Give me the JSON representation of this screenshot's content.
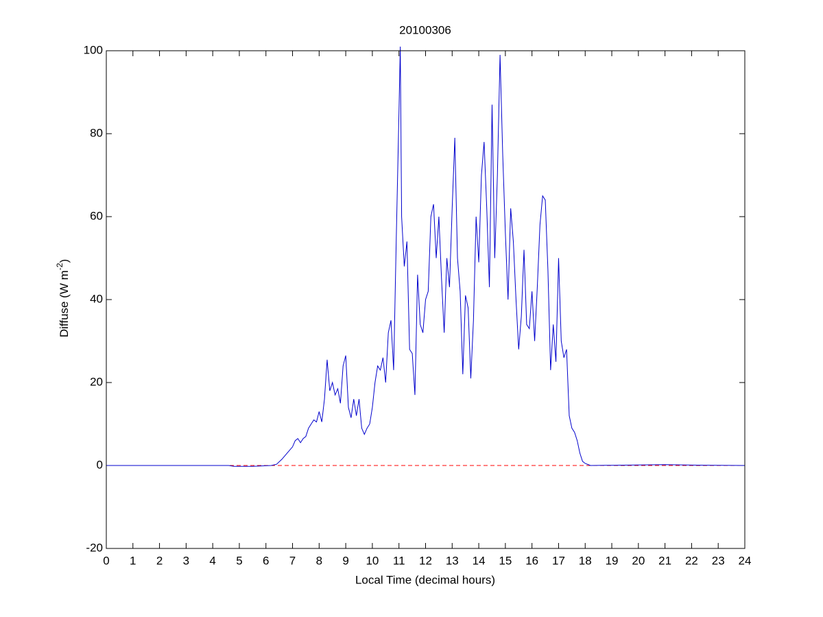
{
  "chart_data": {
    "type": "line",
    "title": "20100306",
    "xlabel": "Local Time (decimal hours)",
    "ylabel": [
      "Diffuse (W m",
      "-2",
      ")"
    ],
    "xlim": [
      0,
      24
    ],
    "xticks": [
      0,
      1,
      2,
      3,
      4,
      5,
      6,
      7,
      8,
      9,
      10,
      11,
      12,
      13,
      14,
      15,
      16,
      17,
      18,
      19,
      20,
      21,
      22,
      23,
      24
    ],
    "ylim": [
      -20,
      100
    ],
    "yticks": [
      -20,
      0,
      20,
      40,
      60,
      80,
      100
    ],
    "reference_line": {
      "value": 0,
      "color": "#ff0000",
      "style": "dashed"
    },
    "series": [
      {
        "color": "#0000cc",
        "x": [
          0,
          4.6,
          4.8,
          5.5,
          6.2,
          6.4,
          6.6,
          6.8,
          7.0,
          7.1,
          7.2,
          7.3,
          7.4,
          7.5,
          7.6,
          7.7,
          7.8,
          7.9,
          8.0,
          8.1,
          8.2,
          8.3,
          8.4,
          8.5,
          8.6,
          8.7,
          8.8,
          8.9,
          9.0,
          9.1,
          9.2,
          9.3,
          9.4,
          9.5,
          9.6,
          9.7,
          9.8,
          9.9,
          10.0,
          10.1,
          10.2,
          10.3,
          10.4,
          10.5,
          10.6,
          10.7,
          10.8,
          10.9,
          11.0,
          11.05,
          11.1,
          11.2,
          11.3,
          11.4,
          11.5,
          11.6,
          11.7,
          11.8,
          11.9,
          12.0,
          12.1,
          12.2,
          12.3,
          12.4,
          12.5,
          12.6,
          12.7,
          12.8,
          12.9,
          13.0,
          13.1,
          13.2,
          13.3,
          13.4,
          13.5,
          13.6,
          13.7,
          13.8,
          13.9,
          14.0,
          14.1,
          14.2,
          14.3,
          14.4,
          14.5,
          14.6,
          14.7,
          14.8,
          14.9,
          15.0,
          15.1,
          15.2,
          15.3,
          15.4,
          15.5,
          15.6,
          15.7,
          15.8,
          15.9,
          16.0,
          16.1,
          16.2,
          16.3,
          16.4,
          16.5,
          16.6,
          16.7,
          16.8,
          16.9,
          17.0,
          17.1,
          17.2,
          17.3,
          17.4,
          17.5,
          17.6,
          17.7,
          17.8,
          17.9,
          18.0,
          18.2,
          21.0,
          22.0,
          24.0
        ],
        "values": [
          0,
          0,
          -0.2,
          -0.2,
          0,
          0.3,
          1.5,
          3,
          4.5,
          6,
          6.5,
          5.5,
          6.5,
          7,
          9,
          10,
          11,
          10.5,
          13,
          10.5,
          16,
          25.5,
          18,
          20,
          17,
          18.5,
          15,
          24,
          26.5,
          14,
          11.5,
          16,
          12,
          16,
          9,
          7.5,
          9,
          10,
          14,
          20,
          24,
          23,
          26,
          20,
          32,
          35,
          23,
          55,
          85,
          101,
          60,
          48,
          54,
          28,
          27,
          17,
          46,
          34,
          32,
          40,
          42,
          60,
          63,
          50,
          60,
          45,
          32,
          50,
          43,
          62,
          79,
          50,
          42,
          22,
          41,
          38,
          21,
          35,
          60,
          49,
          70,
          78,
          62,
          43,
          87,
          50,
          70,
          99,
          75,
          56,
          40,
          62,
          54,
          40,
          28,
          36,
          52,
          34,
          33,
          42,
          30,
          43,
          58,
          65,
          64,
          47,
          23,
          34,
          25,
          50,
          30,
          26,
          28,
          12,
          9,
          8,
          6,
          3,
          1,
          0.5,
          0,
          0.2,
          0.1,
          0
        ]
      }
    ]
  }
}
